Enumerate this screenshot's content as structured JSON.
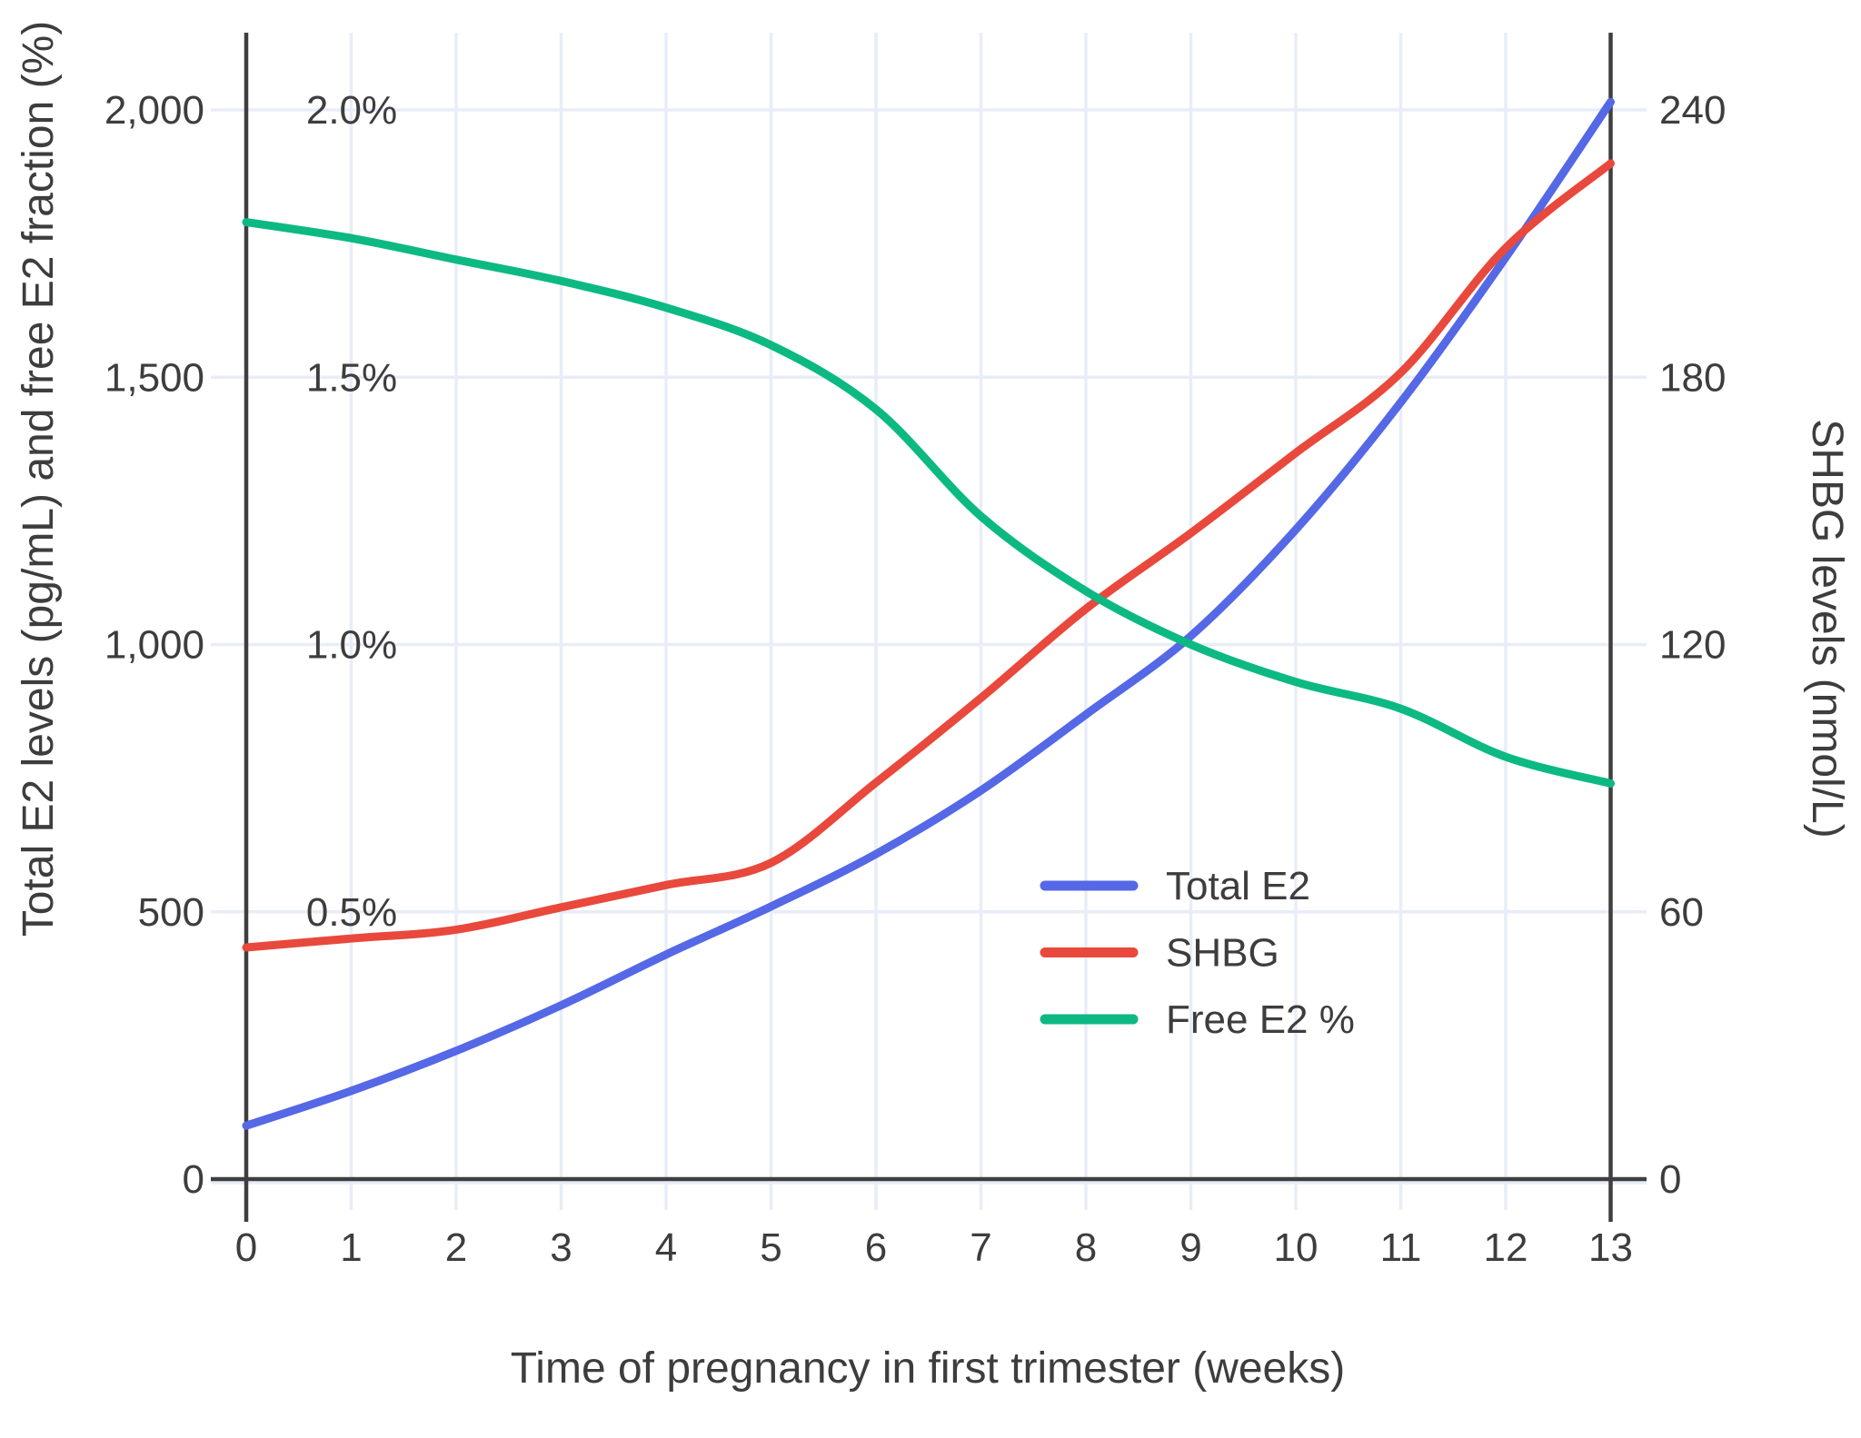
{
  "colors": {
    "background": "#ffffff",
    "grid": "#e8edf7",
    "axis": "#3f3f3f",
    "text": "#3d3d3d",
    "total_e2": "#5568e6",
    "shbg": "#e8493c",
    "free_e2": "#0db982"
  },
  "chart_data": {
    "type": "line",
    "title": "",
    "xlabel": "Time of pregnancy in first trimester (weeks)",
    "ylabel_left": "Total E2 levels (pg/mL) and free E2 fraction (%)",
    "ylabel_right": "SHBG levels (nmol/L)",
    "x": [
      0,
      1,
      2,
      3,
      4,
      5,
      6,
      7,
      8,
      9,
      10,
      11,
      12,
      13
    ],
    "xlim": [
      0,
      13
    ],
    "ylim_left_pg_ml": [
      0,
      2000
    ],
    "ylim_left_pct": [
      0,
      2.0
    ],
    "ylim_right_nmol_l": [
      0,
      240
    ],
    "grid": true,
    "legend_position": "inside-right-middle",
    "x_ticks": [
      "0",
      "1",
      "2",
      "3",
      "4",
      "5",
      "6",
      "7",
      "8",
      "9",
      "10",
      "11",
      "12",
      "13"
    ],
    "y_ticks_left_pg_ml": [
      "0",
      "500",
      "1,000",
      "1,500",
      "2,000"
    ],
    "y_ticks_left_pct": [
      "0.5%",
      "1.0%",
      "1.5%",
      "2.0%"
    ],
    "y_ticks_right": [
      "0",
      "60",
      "120",
      "180",
      "240"
    ],
    "series": [
      {
        "name": "Total E2",
        "axis": "left-pg-ml",
        "unit": "pg/mL",
        "color": "#5568e6",
        "values": [
          100,
          165,
          240,
          325,
          420,
          510,
          608,
          727,
          869,
          1016,
          1215,
          1453,
          1724,
          2015
        ]
      },
      {
        "name": "SHBG",
        "axis": "right-nmol-l",
        "unit": "nmol/L",
        "color": "#e8493c",
        "values": [
          52,
          54,
          56,
          61,
          66,
          71,
          89,
          108,
          128,
          145,
          163,
          181,
          209,
          228
        ]
      },
      {
        "name": "Free E2 %",
        "axis": "left-pct",
        "unit": "%",
        "color": "#0db982",
        "values": [
          1.79,
          1.76,
          1.72,
          1.68,
          1.63,
          1.56,
          1.44,
          1.24,
          1.1,
          1.0,
          0.93,
          0.88,
          0.79,
          0.74
        ]
      }
    ]
  }
}
